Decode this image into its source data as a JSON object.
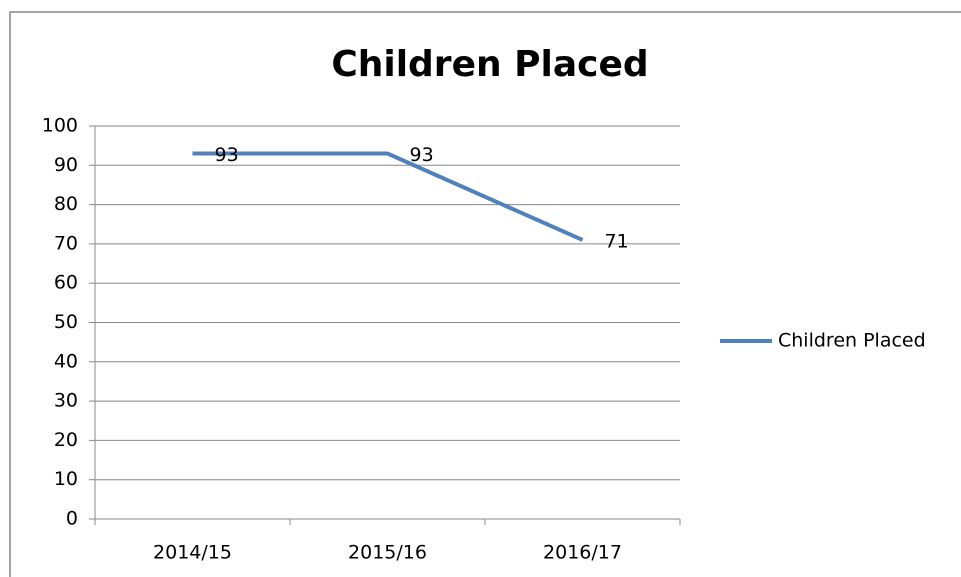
{
  "chart_data": {
    "type": "line",
    "title": "Children Placed",
    "categories": [
      "2014/15",
      "2015/16",
      "2016/17"
    ],
    "series": [
      {
        "name": "Children Placed",
        "color": "#4f81bd",
        "values": [
          93,
          93,
          71
        ]
      }
    ],
    "ylim": [
      0,
      100
    ],
    "yticks": [
      0,
      10,
      20,
      30,
      40,
      50,
      60,
      70,
      80,
      90,
      100
    ],
    "grid": true,
    "legend": "right",
    "data_labels": true
  }
}
